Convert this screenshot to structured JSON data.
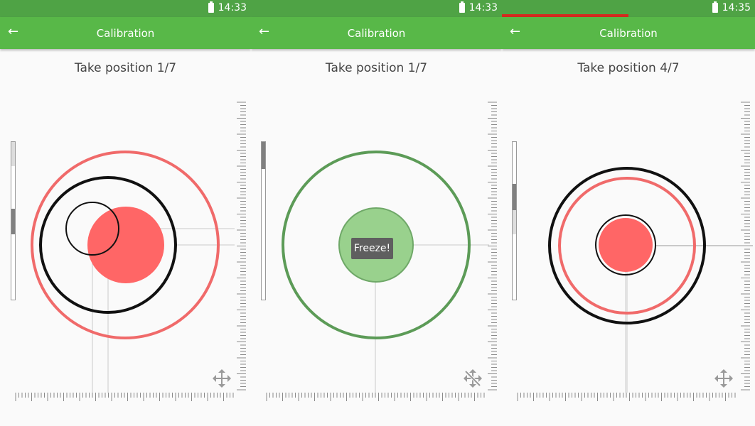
{
  "panels": [
    {
      "status": {
        "time": "14:33",
        "progress_fraction": 0
      },
      "appbar": {
        "title": "Calibration"
      },
      "instruction": "Take position 1/7",
      "move_icon": "move-icon",
      "freeze_label": null
    },
    {
      "status": {
        "time": "14:33",
        "progress_fraction": 0
      },
      "appbar": {
        "title": "Calibration"
      },
      "instruction": "Take position 1/7",
      "move_icon": "move-disabled-icon",
      "freeze_label": "Freeze!"
    },
    {
      "status": {
        "time": "14:35",
        "progress_fraction": 0.5
      },
      "appbar": {
        "title": "Calibration"
      },
      "instruction": "Take position 4/7",
      "move_icon": "move-icon",
      "freeze_label": null
    }
  ],
  "colors": {
    "status_bar": "#4fa345",
    "app_bar": "#58b848",
    "target_red": "#ff6666",
    "ring_red": "#f06a6a",
    "ring_green": "#5c9b57",
    "fill_green": "#99d18d",
    "progress_red": "#d32a1e"
  }
}
